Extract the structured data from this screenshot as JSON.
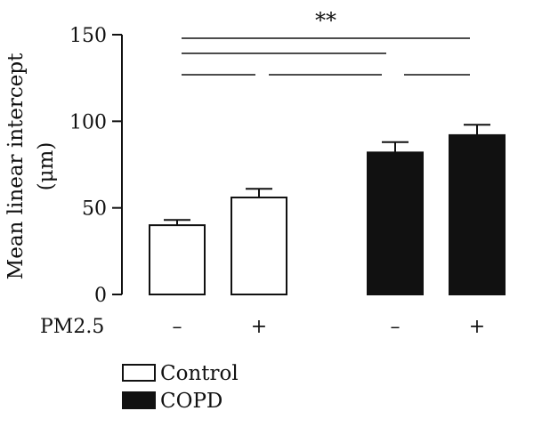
{
  "chart_data": {
    "type": "bar",
    "title": "",
    "xlabel": "",
    "ylabel": "Mean linear intercept",
    "ylabel_unit": "(μm)",
    "ylim": [
      0,
      150
    ],
    "yticks": [
      "0",
      "50",
      "100",
      "150"
    ],
    "treatment_label": "PM2.5",
    "bars": [
      {
        "group": "Control",
        "pm25": "–",
        "value": 40,
        "error": 3
      },
      {
        "group": "Control",
        "pm25": "+",
        "value": 56,
        "error": 5
      },
      {
        "group": "COPD",
        "pm25": "–",
        "value": 82,
        "error": 6
      },
      {
        "group": "COPD",
        "pm25": "+",
        "value": 92,
        "error": 6
      }
    ],
    "legend": [
      {
        "label": "Control",
        "color": "#ffffff"
      },
      {
        "label": "COPD",
        "color": "#111111"
      }
    ],
    "significance": {
      "label": "**",
      "comparisons": [
        [
          0,
          3
        ],
        [
          0,
          2
        ],
        [
          0,
          1
        ],
        [
          1,
          2
        ],
        [
          2,
          3
        ]
      ]
    }
  }
}
